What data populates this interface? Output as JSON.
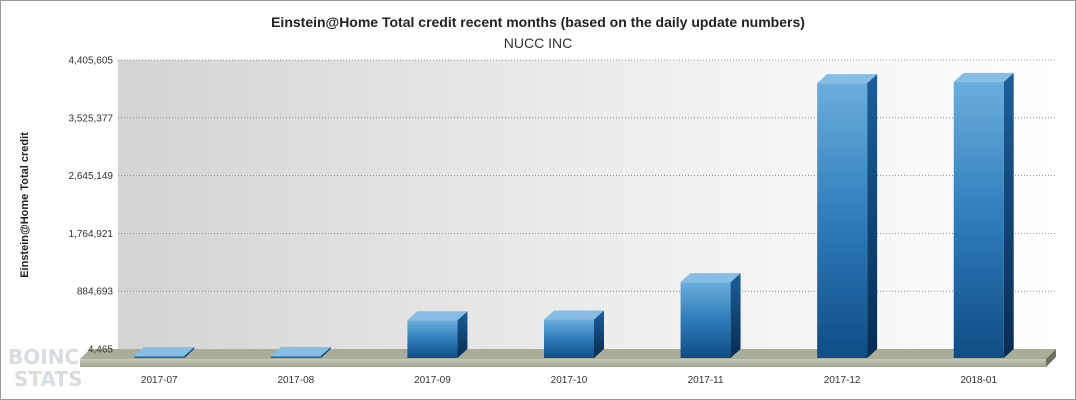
{
  "chart_data": {
    "type": "bar",
    "title": "Einstein@Home Total credit recent months (based on the daily update numbers)",
    "subtitle": "NUCC INC",
    "ylabel": "Einstein@Home Total credit",
    "xlabel": "",
    "categories": [
      "2017-07",
      "2017-08",
      "2017-09",
      "2017-10",
      "2017-11",
      "2017-12",
      "2018-01"
    ],
    "values": [
      4465,
      4465,
      580000,
      590000,
      1160000,
      4190000,
      4210000
    ],
    "ylim": [
      4465,
      4405605
    ],
    "yticks": [
      "4,465",
      "884,693",
      "1,764,921",
      "2,645,149",
      "3,525,377",
      "4,405,605"
    ],
    "yticks_values": [
      4465,
      884693,
      1764921,
      2645149,
      3525377,
      4405605
    ],
    "grid": true,
    "bar_color": "#2a78b8"
  },
  "watermark": {
    "line1": "BOINC",
    "line2": "STATS"
  }
}
